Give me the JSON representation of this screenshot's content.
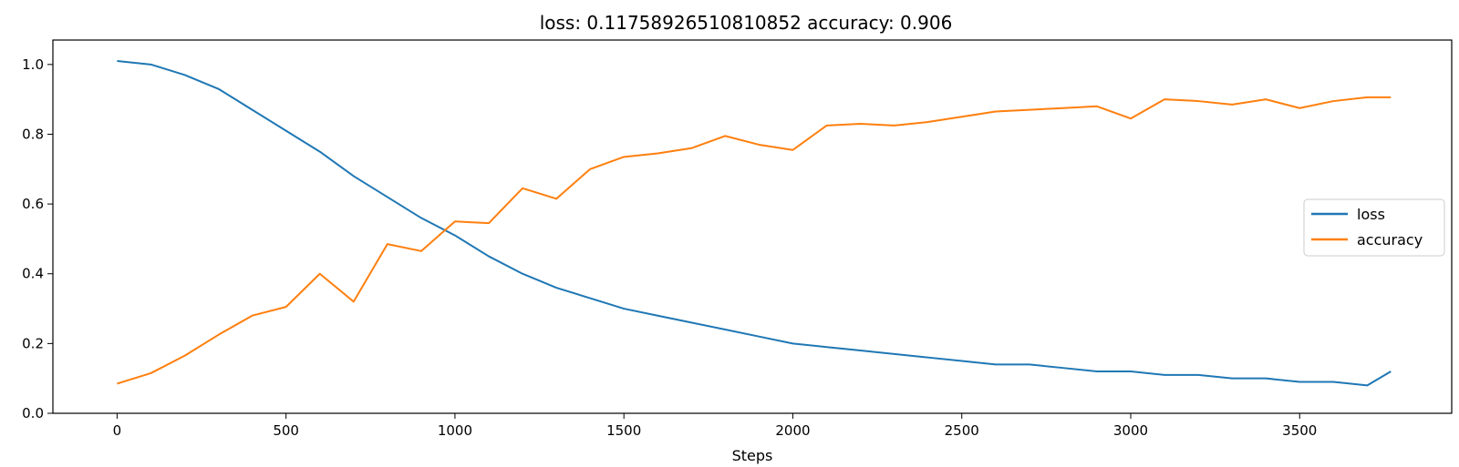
{
  "chart_data": {
    "type": "line",
    "title": "loss: 0.11758926510810852   accuracy: 0.906",
    "xlabel": "Steps",
    "ylabel": "",
    "xlim": [
      -190,
      3950
    ],
    "ylim": [
      0,
      1.07
    ],
    "x_ticks": [
      0,
      500,
      1000,
      1500,
      2000,
      2500,
      3000,
      3500
    ],
    "x_tick_labels": [
      "0",
      "500",
      "1000",
      "1500",
      "2000",
      "2500",
      "3000",
      "3500"
    ],
    "y_ticks": [
      0.0,
      0.2,
      0.4,
      0.6,
      0.8,
      1.0
    ],
    "y_tick_labels": [
      "0.0",
      "0.2",
      "0.4",
      "0.6",
      "0.8",
      "1.0"
    ],
    "grid": false,
    "legend_position": "center-right",
    "series": [
      {
        "name": "loss",
        "color": "#1f77b4",
        "x": [
          0,
          100,
          200,
          300,
          400,
          500,
          600,
          700,
          800,
          900,
          1000,
          1100,
          1200,
          1300,
          1400,
          1500,
          1600,
          1700,
          1800,
          1900,
          2000,
          2100,
          2200,
          2300,
          2400,
          2500,
          2600,
          2700,
          2800,
          2900,
          3000,
          3100,
          3200,
          3300,
          3400,
          3500,
          3600,
          3700,
          3770
        ],
        "values": [
          1.01,
          1.0,
          0.97,
          0.93,
          0.87,
          0.81,
          0.75,
          0.68,
          0.62,
          0.56,
          0.51,
          0.45,
          0.4,
          0.36,
          0.33,
          0.3,
          0.28,
          0.26,
          0.24,
          0.22,
          0.2,
          0.19,
          0.18,
          0.17,
          0.16,
          0.15,
          0.14,
          0.14,
          0.13,
          0.12,
          0.12,
          0.11,
          0.11,
          0.1,
          0.1,
          0.09,
          0.09,
          0.08,
          0.12
        ]
      },
      {
        "name": "accuracy",
        "color": "#ff7f0e",
        "x": [
          0,
          100,
          200,
          300,
          400,
          500,
          600,
          700,
          800,
          900,
          1000,
          1100,
          1200,
          1300,
          1400,
          1500,
          1600,
          1700,
          1800,
          1900,
          2000,
          2100,
          2200,
          2300,
          2400,
          2500,
          2600,
          2700,
          2800,
          2900,
          3000,
          3100,
          3200,
          3300,
          3400,
          3500,
          3600,
          3700,
          3770
        ],
        "values": [
          0.085,
          0.115,
          0.165,
          0.225,
          0.28,
          0.305,
          0.4,
          0.32,
          0.485,
          0.465,
          0.55,
          0.545,
          0.645,
          0.615,
          0.7,
          0.735,
          0.745,
          0.76,
          0.795,
          0.77,
          0.755,
          0.825,
          0.83,
          0.825,
          0.835,
          0.85,
          0.865,
          0.87,
          0.875,
          0.88,
          0.845,
          0.9,
          0.895,
          0.885,
          0.9,
          0.875,
          0.895,
          0.906,
          0.906
        ]
      }
    ]
  }
}
